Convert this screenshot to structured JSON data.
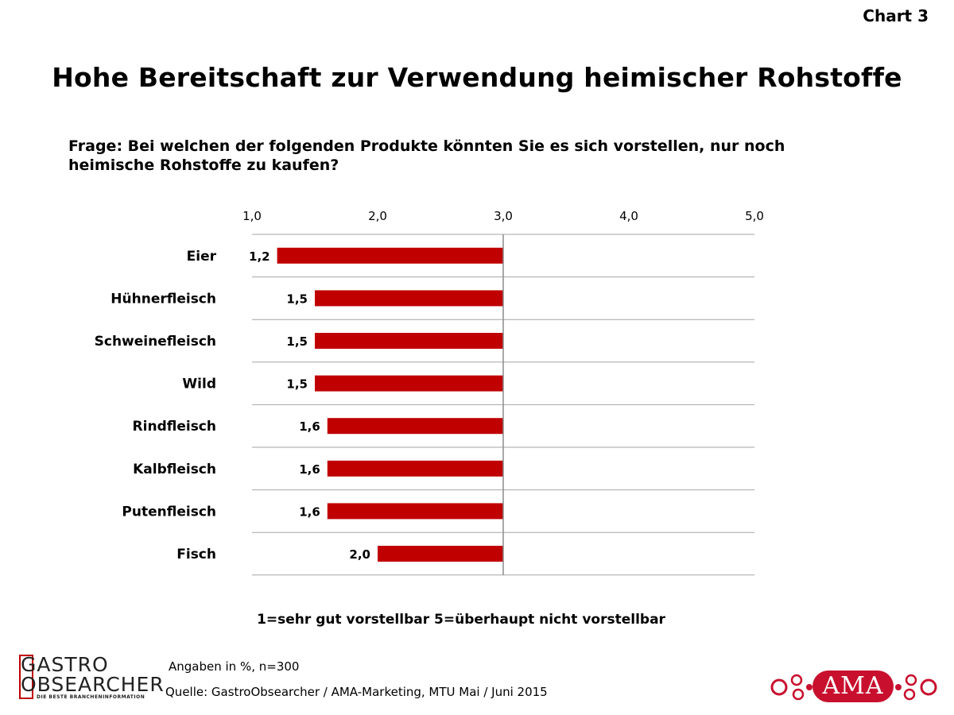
{
  "header": {
    "chart_number": "Chart 3",
    "title": "Hohe Bereitschaft zur Verwendung heimischer Rohstoffe",
    "question": "Frage: Bei welchen der folgenden Produkte könnten Sie es sich vorstellen, nur noch heimische Rohstoffe zu kaufen?"
  },
  "chart_data": {
    "type": "bar",
    "orientation": "horizontal",
    "categories": [
      "Eier",
      "Hühnerfleisch",
      "Schweinefleisch",
      "Wild",
      "Rindfleisch",
      "Kalbfleisch",
      "Putenfleisch",
      "Fisch"
    ],
    "values": [
      1.2,
      1.5,
      1.5,
      1.5,
      1.6,
      1.6,
      1.6,
      2.0
    ],
    "value_labels": [
      "1,2",
      "1,5",
      "1,5",
      "1,5",
      "1,6",
      "1,6",
      "1,6",
      "2,0"
    ],
    "xlim": [
      1,
      5
    ],
    "bar_baseline": 3,
    "x_ticks": [
      "1,0",
      "2,0",
      "3,0",
      "4,0",
      "5,0"
    ],
    "x_axis_position": "top",
    "bar_color": "#c00000",
    "grid": "horizontal",
    "legend": "none"
  },
  "footer": {
    "scale_note": "1=sehr gut vorstellbar  5=überhaupt nicht vorstellbar",
    "sample_note": "Angaben in %, n=300",
    "source_note": "Quelle: GastroObsearcher / AMA-Marketing, MTU Mai / Juni 2015",
    "logo_left_line1": "GASTRO",
    "logo_left_line2": "OBSEARCHER",
    "logo_left_tagline": "DIE BESTE BRANCHENINFORMATION",
    "logo_right": "AMA"
  }
}
